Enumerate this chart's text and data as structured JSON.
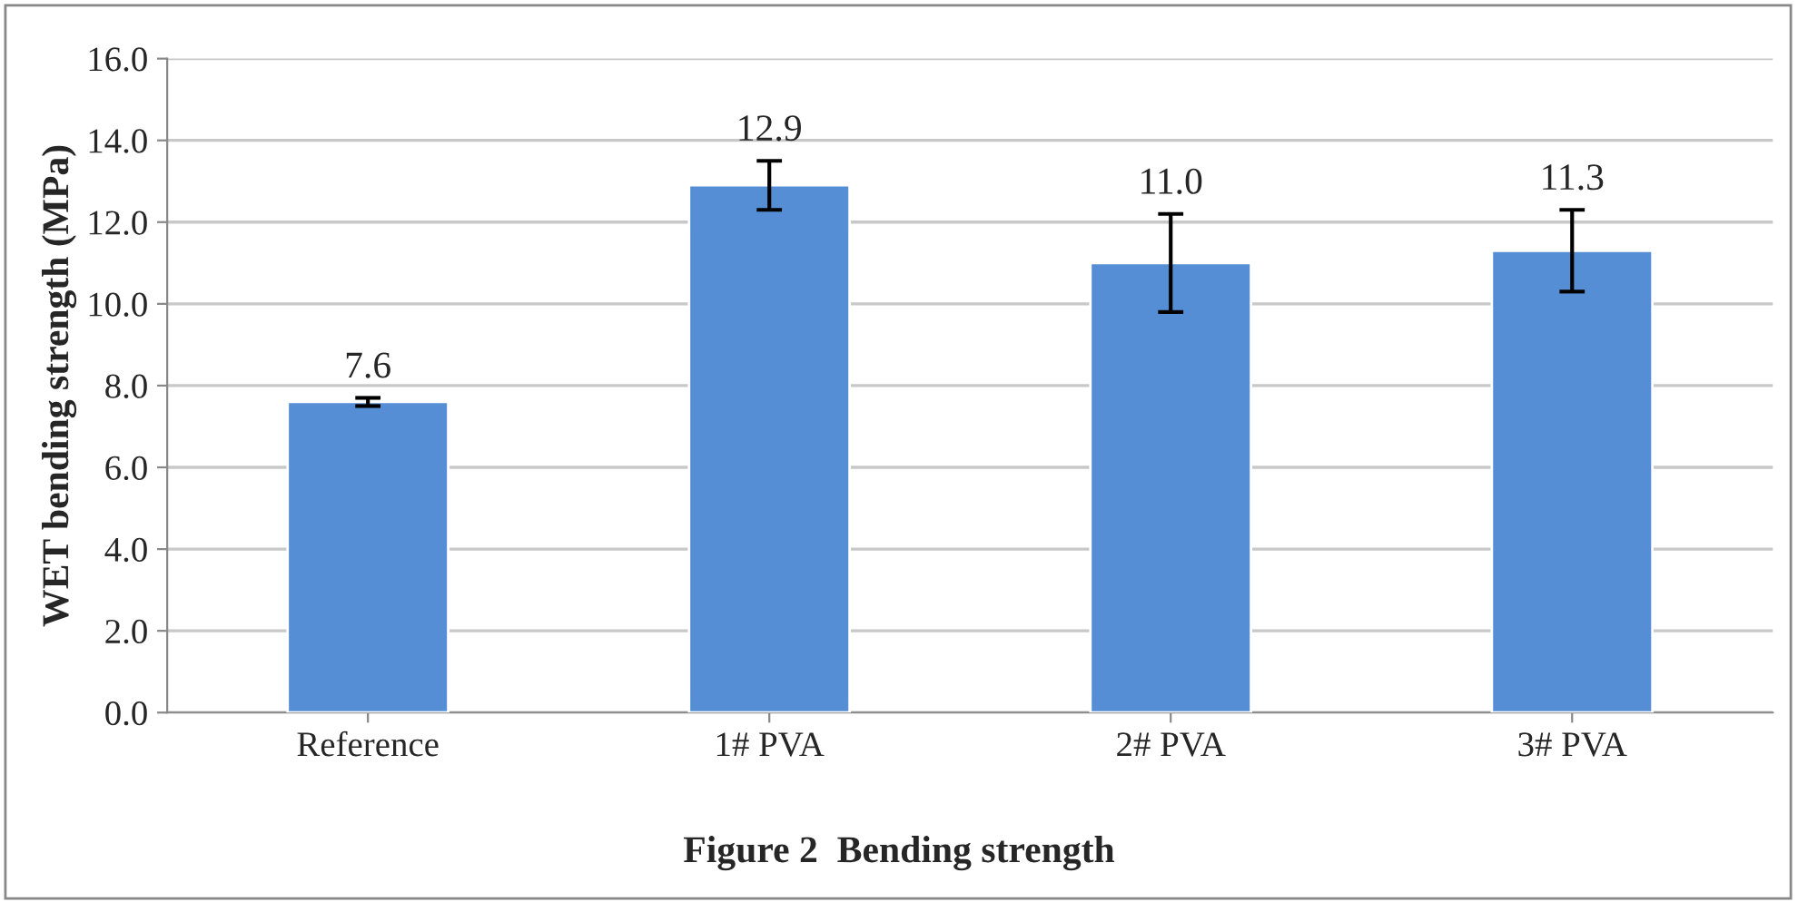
{
  "chart_data": {
    "type": "bar",
    "title": "Figure 2  Bending strength",
    "ylabel": "WET bending strength (MPa)",
    "categories": [
      "Reference",
      "1# PVA",
      "2# PVA",
      "3# PVA"
    ],
    "values": [
      7.6,
      12.9,
      11.0,
      11.3
    ],
    "errors": [
      0.1,
      0.6,
      1.2,
      1.0
    ],
    "color": "#558ed5",
    "value_labels": [
      "7.6",
      "12.9",
      "11.0",
      "11.3"
    ],
    "ylim": [
      0,
      16
    ],
    "yticks": [
      {
        "value": 0,
        "label": "0.0"
      },
      {
        "value": 2,
        "label": "2.0"
      },
      {
        "value": 4,
        "label": "4.0"
      },
      {
        "value": 6,
        "label": "6.0"
      },
      {
        "value": 8,
        "label": "8.0"
      },
      {
        "value": 10,
        "label": "10.0"
      },
      {
        "value": 12,
        "label": "12.0"
      },
      {
        "value": 14,
        "label": "14.0"
      },
      {
        "value": 16,
        "label": "16.0"
      }
    ],
    "grid": "y"
  }
}
